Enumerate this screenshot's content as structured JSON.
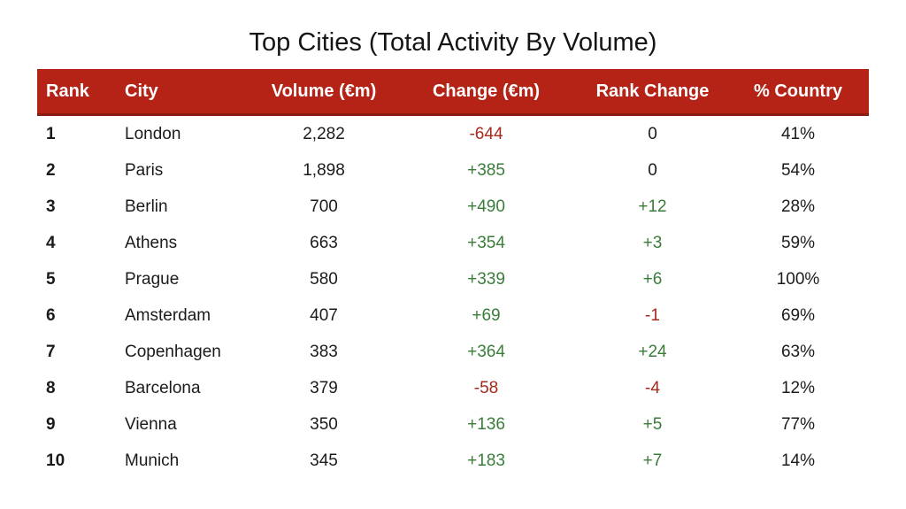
{
  "title": "Top Cities (Total Activity By Volume)",
  "colors": {
    "header_bg": "#B52317",
    "header_border": "#8B1A10",
    "positive": "#3A7D3A",
    "negative": "#A52A1E",
    "text": "#1b1b1b"
  },
  "chart_data": {
    "type": "table",
    "title": "Top Cities (Total Activity By Volume)",
    "columns": [
      "Rank",
      "City",
      "Volume (€m)",
      "Change (€m)",
      "Rank Change",
      "% Country"
    ],
    "rows": [
      [
        "1",
        "London",
        "2,282",
        "-644",
        "0",
        "41%"
      ],
      [
        "2",
        "Paris",
        "1,898",
        "+385",
        "0",
        "54%"
      ],
      [
        "3",
        "Berlin",
        "700",
        "+490",
        "+12",
        "28%"
      ],
      [
        "4",
        "Athens",
        "663",
        "+354",
        "+3",
        "59%"
      ],
      [
        "5",
        "Prague",
        "580",
        "+339",
        "+6",
        "100%"
      ],
      [
        "6",
        "Amsterdam",
        "407",
        "+69",
        "-1",
        "69%"
      ],
      [
        "7",
        "Copenhagen",
        "383",
        "+364",
        "+24",
        "63%"
      ],
      [
        "8",
        "Barcelona",
        "379",
        "-58",
        "-4",
        "12%"
      ],
      [
        "9",
        "Vienna",
        "350",
        "+136",
        "+5",
        "77%"
      ],
      [
        "10",
        "Munich",
        "345",
        "+183",
        "+7",
        "14%"
      ]
    ]
  }
}
